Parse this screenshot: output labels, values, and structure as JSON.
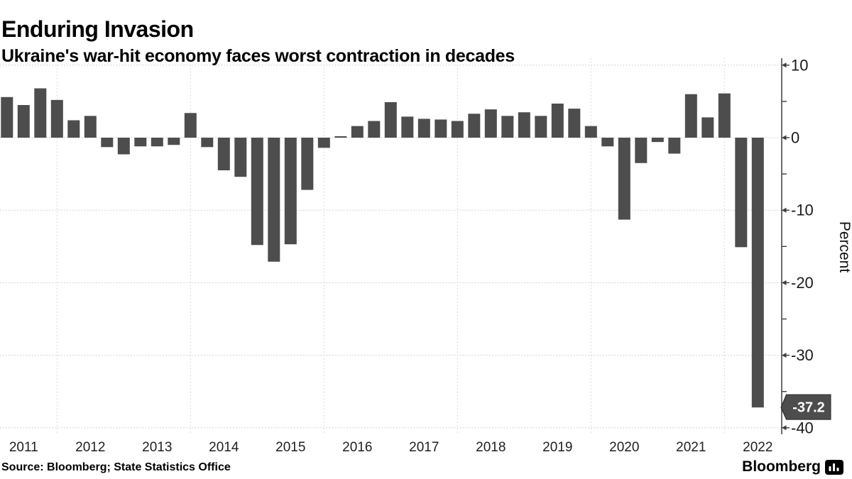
{
  "header": {
    "title": "Enduring Invasion",
    "subtitle": "Ukraine's war-hit economy faces worst contraction in decades"
  },
  "footer": {
    "source": "Source: Bloomberg; State Statistics Office",
    "brand": "Bloomberg"
  },
  "colors": {
    "bar": "#4d4d4d",
    "badge_bg": "#4d4d4d",
    "badge_border": "#222222",
    "badge_text": "#ffffff",
    "grid": "#c4c4c4",
    "axis": "#3d3d3d",
    "tick_text": "#1a1a1a"
  },
  "chart_data": {
    "type": "bar",
    "title": "Enduring Invasion",
    "subtitle": "Ukraine's war-hit economy faces worst contraction in decades",
    "xlabel": "",
    "ylabel": "Percent",
    "frequency": "quarterly",
    "ylim": [
      -40,
      10
    ],
    "ytick_major": [
      10,
      0,
      -10,
      -20,
      -30,
      -40
    ],
    "ytick_minor": [
      5,
      -5,
      -15,
      -25,
      -35
    ],
    "grid": true,
    "legend": "none",
    "x_gridlines_at_january_of": [
      "2012",
      "2014",
      "2016",
      "2018",
      "2020",
      "2022"
    ],
    "years": [
      {
        "year": "2011",
        "values": [
          5.6,
          4.5,
          6.8,
          5.2
        ]
      },
      {
        "year": "2012",
        "values": [
          2.4,
          3.0,
          -1.3,
          -2.3
        ]
      },
      {
        "year": "2013",
        "values": [
          -1.2,
          -1.2,
          -1.0,
          3.4
        ]
      },
      {
        "year": "2014",
        "values": [
          -1.3,
          -4.5,
          -5.4,
          -14.8
        ]
      },
      {
        "year": "2015",
        "values": [
          -17.1,
          -14.7,
          -7.2,
          -1.4
        ]
      },
      {
        "year": "2016",
        "values": [
          0.2,
          1.6,
          2.3,
          4.9
        ]
      },
      {
        "year": "2017",
        "values": [
          2.9,
          2.6,
          2.5,
          2.3
        ]
      },
      {
        "year": "2018",
        "values": [
          3.3,
          3.9,
          3.0,
          3.5
        ]
      },
      {
        "year": "2019",
        "values": [
          3.0,
          4.7,
          4.0,
          1.6
        ]
      },
      {
        "year": "2020",
        "values": [
          -1.2,
          -11.3,
          -3.5,
          -0.6
        ]
      },
      {
        "year": "2021",
        "values": [
          -2.2,
          6.0,
          2.8,
          6.1
        ]
      },
      {
        "year": "2022",
        "values": [
          -15.1,
          -37.2
        ]
      }
    ],
    "annotation": {
      "text": "-37.2",
      "value": -37.2,
      "position": "last-bar"
    }
  }
}
